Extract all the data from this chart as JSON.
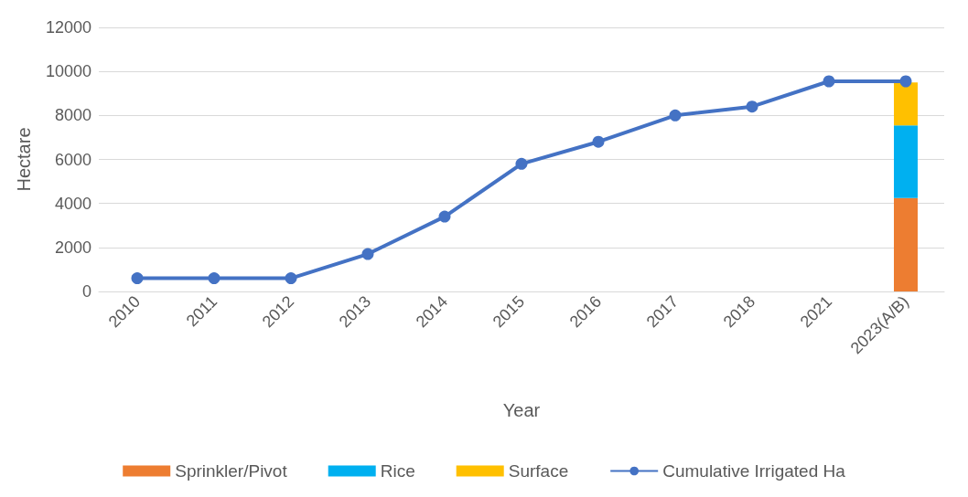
{
  "chart_data": {
    "type": "bar",
    "stacked": true,
    "xlabel": "Year",
    "ylabel": "Hectare",
    "categories": [
      "2010",
      "2011",
      "2012",
      "2013",
      "2014",
      "2015",
      "2016",
      "2017",
      "2018",
      "2021",
      "2023(A/B)"
    ],
    "series": [
      {
        "name": "Sprinkler/Pivot",
        "color": "#ed7d31",
        "values": [
          null,
          null,
          null,
          null,
          null,
          null,
          null,
          null,
          null,
          null,
          4250
        ]
      },
      {
        "name": "Rice",
        "color": "#00b0f0",
        "values": [
          null,
          null,
          null,
          null,
          null,
          null,
          null,
          null,
          null,
          null,
          3300
        ]
      },
      {
        "name": "Surface",
        "color": "#ffc000",
        "values": [
          null,
          null,
          null,
          null,
          null,
          null,
          null,
          null,
          null,
          null,
          1950
        ]
      },
      {
        "name": "Cumulative Irrigated Ha",
        "type": "line",
        "color": "#4472c4",
        "marker": "circle",
        "values": [
          600,
          600,
          600,
          1700,
          3400,
          5800,
          6800,
          8000,
          8400,
          9550,
          9550
        ]
      }
    ],
    "ylim": [
      0,
      12000
    ],
    "yticks": [
      0,
      2000,
      4000,
      6000,
      8000,
      10000,
      12000
    ],
    "grid": "y",
    "legend": "bottom"
  }
}
